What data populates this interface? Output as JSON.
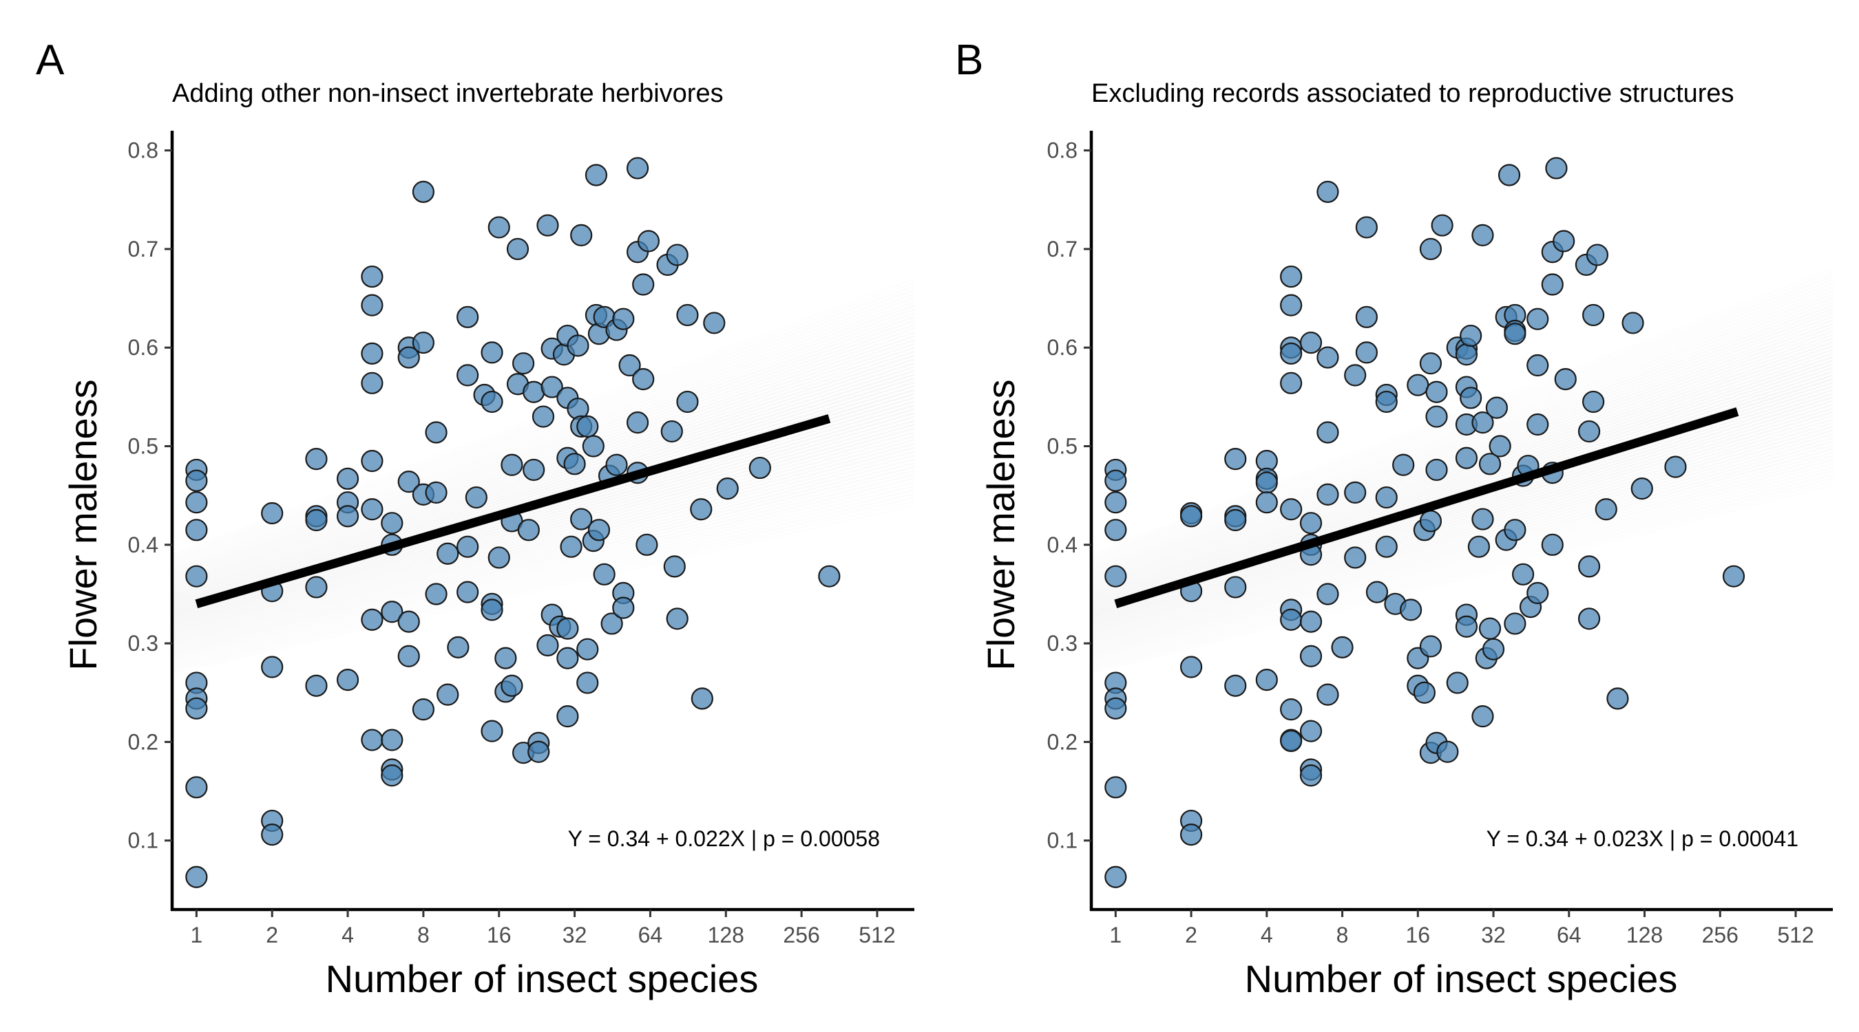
{
  "chart_data": [
    {
      "panel": "A",
      "type": "scatter",
      "title": "Adding other non-insect invertebrate herbivores",
      "xlabel": "Number of insect species",
      "ylabel": "Flower maleness",
      "x_scale": "log2",
      "xlim": [
        0.8,
        720
      ],
      "ylim": [
        0.03,
        0.82
      ],
      "xticks": [
        "1",
        "2",
        "4",
        "8",
        "16",
        "32",
        "64",
        "128",
        "256",
        "512"
      ],
      "yticks": [
        "0.1",
        "0.2",
        "0.3",
        "0.4",
        "0.5",
        "0.6",
        "0.7",
        "0.8"
      ],
      "annotation": "Y = 0.34 + 0.022X | p = 0.00058",
      "fit": {
        "x": [
          1,
          330
        ],
        "y": [
          0.34,
          0.528
        ]
      },
      "band": {
        "x": [
          0.8,
          720
        ],
        "lower": [
          0.27,
          0.44
        ],
        "upper": [
          0.39,
          0.67
        ]
      },
      "points": [
        [
          1,
          0.476
        ],
        [
          1,
          0.465
        ],
        [
          1,
          0.443
        ],
        [
          1,
          0.415
        ],
        [
          1,
          0.368
        ],
        [
          1,
          0.26
        ],
        [
          1,
          0.244
        ],
        [
          1,
          0.234
        ],
        [
          1,
          0.154
        ],
        [
          1,
          0.063
        ],
        [
          2,
          0.432
        ],
        [
          2,
          0.353
        ],
        [
          2,
          0.276
        ],
        [
          2,
          0.12
        ],
        [
          2,
          0.106
        ],
        [
          3,
          0.487
        ],
        [
          3,
          0.429
        ],
        [
          3,
          0.425
        ],
        [
          3,
          0.357
        ],
        [
          3,
          0.257
        ],
        [
          4,
          0.467
        ],
        [
          4,
          0.443
        ],
        [
          4,
          0.429
        ],
        [
          4,
          0.263
        ],
        [
          5,
          0.672
        ],
        [
          5,
          0.643
        ],
        [
          5,
          0.594
        ],
        [
          5,
          0.564
        ],
        [
          5,
          0.485
        ],
        [
          5,
          0.436
        ],
        [
          5,
          0.324
        ],
        [
          5,
          0.202
        ],
        [
          6,
          0.422
        ],
        [
          6,
          0.4
        ],
        [
          6,
          0.332
        ],
        [
          6,
          0.202
        ],
        [
          6,
          0.172
        ],
        [
          6,
          0.166
        ],
        [
          7,
          0.6
        ],
        [
          7,
          0.59
        ],
        [
          7,
          0.464
        ],
        [
          7,
          0.322
        ],
        [
          7,
          0.287
        ],
        [
          8,
          0.758
        ],
        [
          8,
          0.605
        ],
        [
          8,
          0.451
        ],
        [
          8,
          0.233
        ],
        [
          9,
          0.514
        ],
        [
          9,
          0.453
        ],
        [
          9,
          0.35
        ],
        [
          10,
          0.391
        ],
        [
          10,
          0.248
        ],
        [
          11,
          0.296
        ],
        [
          12,
          0.631
        ],
        [
          12,
          0.572
        ],
        [
          12,
          0.398
        ],
        [
          12,
          0.352
        ],
        [
          13,
          0.448
        ],
        [
          14,
          0.552
        ],
        [
          15,
          0.595
        ],
        [
          15,
          0.545
        ],
        [
          15,
          0.34
        ],
        [
          15,
          0.334
        ],
        [
          15,
          0.211
        ],
        [
          16,
          0.722
        ],
        [
          16,
          0.387
        ],
        [
          17,
          0.285
        ],
        [
          17,
          0.251
        ],
        [
          18,
          0.481
        ],
        [
          18,
          0.424
        ],
        [
          18,
          0.257
        ],
        [
          19,
          0.7
        ],
        [
          19,
          0.563
        ],
        [
          20,
          0.584
        ],
        [
          20,
          0.189
        ],
        [
          21,
          0.415
        ],
        [
          22,
          0.555
        ],
        [
          22,
          0.476
        ],
        [
          23,
          0.199
        ],
        [
          23,
          0.19
        ],
        [
          24,
          0.53
        ],
        [
          25,
          0.724
        ],
        [
          25,
          0.298
        ],
        [
          26,
          0.599
        ],
        [
          26,
          0.56
        ],
        [
          26,
          0.329
        ],
        [
          28,
          0.317
        ],
        [
          29,
          0.593
        ],
        [
          30,
          0.612
        ],
        [
          30,
          0.549
        ],
        [
          30,
          0.488
        ],
        [
          30,
          0.315
        ],
        [
          30,
          0.285
        ],
        [
          30,
          0.226
        ],
        [
          31,
          0.398
        ],
        [
          32,
          0.482
        ],
        [
          33,
          0.602
        ],
        [
          33,
          0.538
        ],
        [
          34,
          0.714
        ],
        [
          34,
          0.52
        ],
        [
          34,
          0.426
        ],
        [
          36,
          0.52
        ],
        [
          36,
          0.294
        ],
        [
          36,
          0.26
        ],
        [
          38,
          0.5
        ],
        [
          38,
          0.404
        ],
        [
          39,
          0.775
        ],
        [
          39,
          0.633
        ],
        [
          40,
          0.614
        ],
        [
          40,
          0.415
        ],
        [
          42,
          0.631
        ],
        [
          42,
          0.37
        ],
        [
          44,
          0.47
        ],
        [
          45,
          0.32
        ],
        [
          47,
          0.618
        ],
        [
          47,
          0.481
        ],
        [
          50,
          0.629
        ],
        [
          50,
          0.351
        ],
        [
          50,
          0.336
        ],
        [
          53,
          0.582
        ],
        [
          57,
          0.782
        ],
        [
          57,
          0.697
        ],
        [
          57,
          0.524
        ],
        [
          57,
          0.473
        ],
        [
          60,
          0.664
        ],
        [
          60,
          0.568
        ],
        [
          62,
          0.4
        ],
        [
          63,
          0.708
        ],
        [
          75,
          0.684
        ],
        [
          78,
          0.515
        ],
        [
          80,
          0.378
        ],
        [
          82,
          0.694
        ],
        [
          82,
          0.325
        ],
        [
          90,
          0.633
        ],
        [
          90,
          0.545
        ],
        [
          102,
          0.436
        ],
        [
          103,
          0.244
        ],
        [
          115,
          0.625
        ],
        [
          130,
          0.457
        ],
        [
          175,
          0.478
        ],
        [
          330,
          0.368
        ]
      ]
    },
    {
      "panel": "B",
      "type": "scatter",
      "title": "Excluding records associated to reproductive structures",
      "xlabel": "Number of insect species",
      "ylabel": "Flower maleness",
      "x_scale": "log2",
      "xlim": [
        0.8,
        720
      ],
      "ylim": [
        0.03,
        0.82
      ],
      "xticks": [
        "1",
        "2",
        "4",
        "8",
        "16",
        "32",
        "64",
        "128",
        "256",
        "512"
      ],
      "yticks": [
        "0.1",
        "0.2",
        "0.3",
        "0.4",
        "0.5",
        "0.6",
        "0.7",
        "0.8"
      ],
      "annotation": "Y = 0.34 + 0.023X | p = 0.00041",
      "fit": {
        "x": [
          1,
          300
        ],
        "y": [
          0.34,
          0.535
        ]
      },
      "band": {
        "x": [
          0.8,
          720
        ],
        "lower": [
          0.27,
          0.46
        ],
        "upper": [
          0.39,
          0.68
        ]
      },
      "points": [
        [
          1,
          0.476
        ],
        [
          1,
          0.465
        ],
        [
          1,
          0.443
        ],
        [
          1,
          0.415
        ],
        [
          1,
          0.368
        ],
        [
          1,
          0.26
        ],
        [
          1,
          0.244
        ],
        [
          1,
          0.234
        ],
        [
          1,
          0.154
        ],
        [
          1,
          0.063
        ],
        [
          2,
          0.432
        ],
        [
          2,
          0.429
        ],
        [
          2,
          0.353
        ],
        [
          2,
          0.276
        ],
        [
          2,
          0.12
        ],
        [
          2,
          0.106
        ],
        [
          3,
          0.487
        ],
        [
          3,
          0.429
        ],
        [
          3,
          0.425
        ],
        [
          3,
          0.357
        ],
        [
          3,
          0.257
        ],
        [
          4,
          0.485
        ],
        [
          4,
          0.467
        ],
        [
          4,
          0.463
        ],
        [
          4,
          0.443
        ],
        [
          4,
          0.263
        ],
        [
          5,
          0.672
        ],
        [
          5,
          0.643
        ],
        [
          5,
          0.6
        ],
        [
          5,
          0.594
        ],
        [
          5,
          0.564
        ],
        [
          5,
          0.436
        ],
        [
          5,
          0.334
        ],
        [
          5,
          0.324
        ],
        [
          5,
          0.233
        ],
        [
          5,
          0.202
        ],
        [
          5,
          0.201
        ],
        [
          6,
          0.605
        ],
        [
          6,
          0.422
        ],
        [
          6,
          0.4
        ],
        [
          6,
          0.39
        ],
        [
          6,
          0.322
        ],
        [
          6,
          0.287
        ],
        [
          6,
          0.211
        ],
        [
          6,
          0.172
        ],
        [
          6,
          0.166
        ],
        [
          7,
          0.758
        ],
        [
          7,
          0.59
        ],
        [
          7,
          0.514
        ],
        [
          7,
          0.451
        ],
        [
          7,
          0.35
        ],
        [
          7,
          0.248
        ],
        [
          8,
          0.296
        ],
        [
          9,
          0.572
        ],
        [
          9,
          0.453
        ],
        [
          9,
          0.387
        ],
        [
          10,
          0.722
        ],
        [
          10,
          0.631
        ],
        [
          10,
          0.595
        ],
        [
          11,
          0.352
        ],
        [
          12,
          0.552
        ],
        [
          12,
          0.545
        ],
        [
          12,
          0.448
        ],
        [
          12,
          0.398
        ],
        [
          13,
          0.34
        ],
        [
          14,
          0.481
        ],
        [
          15,
          0.334
        ],
        [
          16,
          0.562
        ],
        [
          16,
          0.285
        ],
        [
          16,
          0.257
        ],
        [
          17,
          0.415
        ],
        [
          17,
          0.25
        ],
        [
          18,
          0.7
        ],
        [
          18,
          0.584
        ],
        [
          18,
          0.424
        ],
        [
          18,
          0.297
        ],
        [
          18,
          0.189
        ],
        [
          19,
          0.555
        ],
        [
          19,
          0.53
        ],
        [
          19,
          0.476
        ],
        [
          19,
          0.199
        ],
        [
          20,
          0.724
        ],
        [
          21,
          0.19
        ],
        [
          23,
          0.6
        ],
        [
          23,
          0.26
        ],
        [
          25,
          0.599
        ],
        [
          25,
          0.593
        ],
        [
          25,
          0.56
        ],
        [
          25,
          0.522
        ],
        [
          25,
          0.488
        ],
        [
          25,
          0.329
        ],
        [
          25,
          0.317
        ],
        [
          26,
          0.612
        ],
        [
          26,
          0.549
        ],
        [
          28,
          0.398
        ],
        [
          29,
          0.714
        ],
        [
          29,
          0.524
        ],
        [
          29,
          0.426
        ],
        [
          29,
          0.226
        ],
        [
          30,
          0.285
        ],
        [
          31,
          0.482
        ],
        [
          31,
          0.315
        ],
        [
          32,
          0.294
        ],
        [
          33,
          0.539
        ],
        [
          34,
          0.5
        ],
        [
          36,
          0.631
        ],
        [
          36,
          0.405
        ],
        [
          37,
          0.775
        ],
        [
          39,
          0.633
        ],
        [
          39,
          0.617
        ],
        [
          39,
          0.614
        ],
        [
          39,
          0.415
        ],
        [
          39,
          0.32
        ],
        [
          42,
          0.47
        ],
        [
          42,
          0.37
        ],
        [
          44,
          0.48
        ],
        [
          45,
          0.337
        ],
        [
          48,
          0.629
        ],
        [
          48,
          0.582
        ],
        [
          48,
          0.522
        ],
        [
          48,
          0.351
        ],
        [
          55,
          0.697
        ],
        [
          55,
          0.664
        ],
        [
          55,
          0.473
        ],
        [
          55,
          0.4
        ],
        [
          57,
          0.782
        ],
        [
          61,
          0.708
        ],
        [
          62,
          0.568
        ],
        [
          75,
          0.684
        ],
        [
          77,
          0.515
        ],
        [
          77,
          0.378
        ],
        [
          77,
          0.325
        ],
        [
          80,
          0.633
        ],
        [
          80,
          0.545
        ],
        [
          83,
          0.694
        ],
        [
          90,
          0.436
        ],
        [
          100,
          0.244
        ],
        [
          115,
          0.625
        ],
        [
          125,
          0.457
        ],
        [
          170,
          0.479
        ],
        [
          290,
          0.368
        ]
      ]
    }
  ]
}
